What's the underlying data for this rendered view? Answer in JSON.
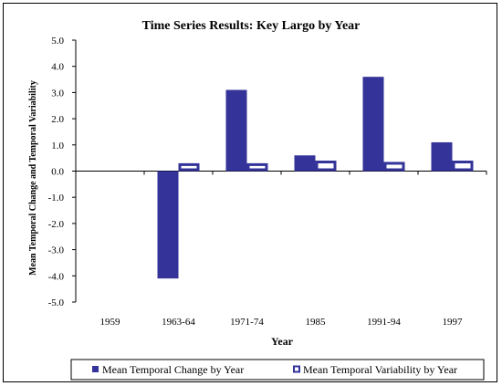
{
  "chart_data": {
    "type": "bar",
    "title": "Time Series Results:  Key Largo by Year",
    "xlabel": "Year",
    "ylabel": "Mean Temporal Change and Temporal Variability",
    "categories": [
      "1959",
      "1963-64",
      "1971-74",
      "1985",
      "1991-94",
      "1997"
    ],
    "ylim": [
      -5.0,
      5.0
    ],
    "yticks": [
      "5.0",
      "4.0",
      "3.0",
      "2.0",
      "1.0",
      "0.0",
      "-1.0",
      "-2.0",
      "-3.0",
      "-4.0",
      "-5.0"
    ],
    "grid": false,
    "legend_position": "bottom",
    "series": [
      {
        "name": "Mean Temporal Change by Year",
        "color": "#333399",
        "style": "filled",
        "values": [
          null,
          -4.1,
          3.1,
          0.6,
          3.6,
          1.1
        ]
      },
      {
        "name": "Mean Temporal Variability by Year",
        "color": "#333399",
        "style": "hollow",
        "values": [
          null,
          0.3,
          0.3,
          0.4,
          0.35,
          0.4
        ]
      }
    ]
  }
}
